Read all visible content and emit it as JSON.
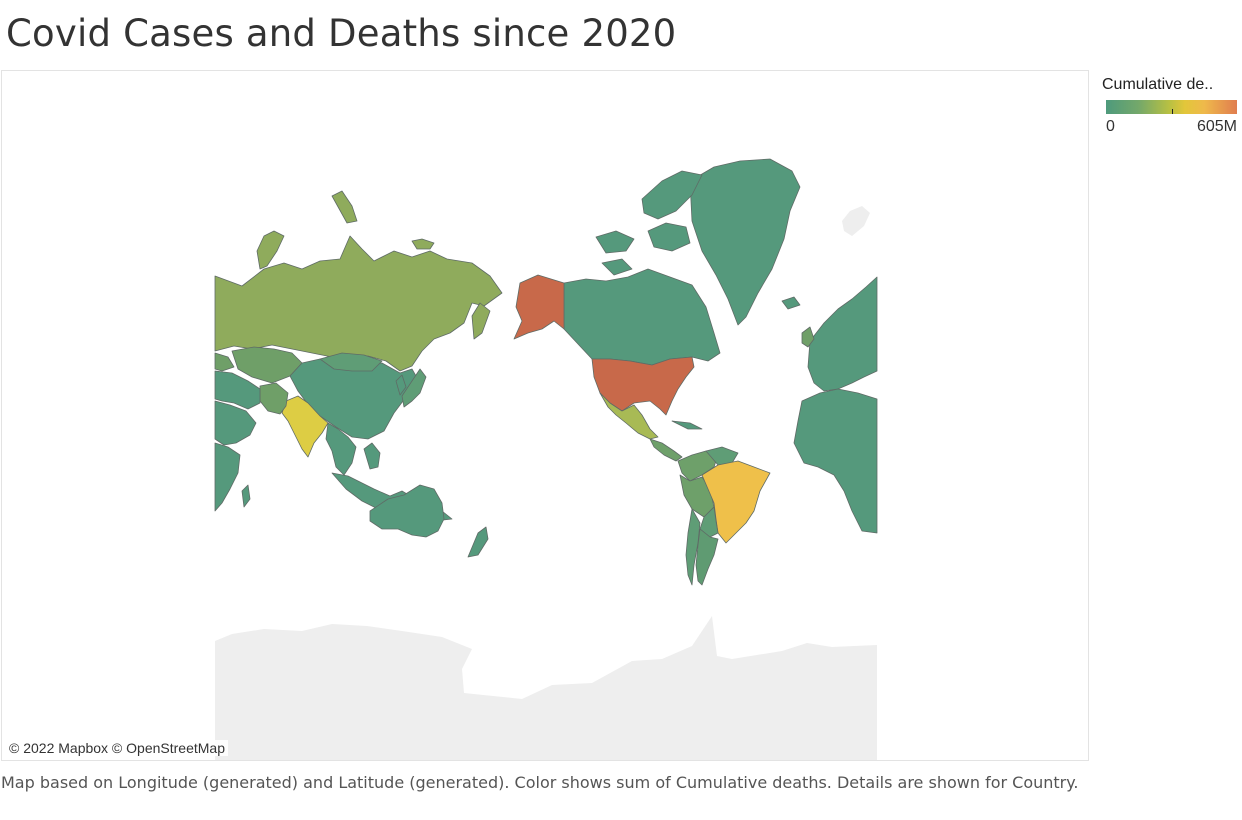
{
  "title": "Covid Cases and Deaths since 2020",
  "legend": {
    "title": "Cumulative de..",
    "min_label": "0",
    "max_label": "605M",
    "colors": [
      "#4e9a7c",
      "#74a86a",
      "#b7c043",
      "#e2c63a",
      "#efb94b",
      "#e07d4f"
    ]
  },
  "map": {
    "attribution": "© 2022 Mapbox © OpenStreetMap",
    "projection": "web-mercator",
    "ocean_color": "#ffffff",
    "land_unfilled_color": "#eeeeee",
    "border_color": "#5f6b66",
    "countries": [
      {
        "name": "United States",
        "color": "#c8694a"
      },
      {
        "name": "Brazil",
        "color": "#efc04a"
      },
      {
        "name": "India",
        "color": "#ddcd44"
      },
      {
        "name": "Russia",
        "color": "#8fab5c"
      },
      {
        "name": "Mexico",
        "color": "#a8ba55"
      },
      {
        "name": "Canada",
        "color": "#55997c"
      },
      {
        "name": "Greenland",
        "color": "#55997c"
      },
      {
        "name": "China",
        "color": "#55997c"
      },
      {
        "name": "Australia",
        "color": "#55997c"
      },
      {
        "name": "Peru",
        "color": "#6ea06a"
      },
      {
        "name": "Argentina",
        "color": "#5f9b72"
      }
    ]
  },
  "caption": "Map based on Longitude (generated) and Latitude (generated).  Color shows sum of Cumulative deaths.  Details are shown for Country."
}
